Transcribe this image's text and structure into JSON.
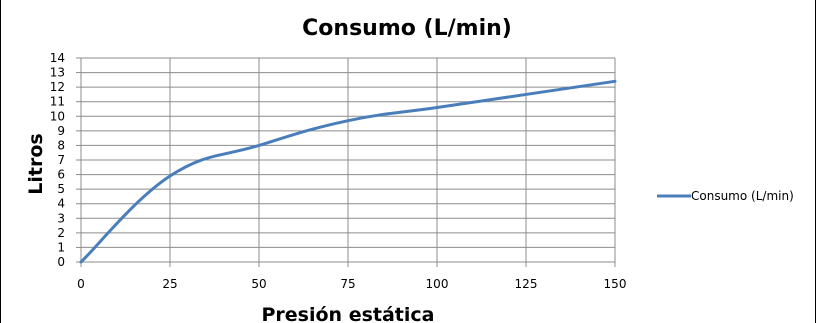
{
  "chart_data": {
    "type": "line",
    "title": "Consumo (L/min)",
    "xlabel": "Presión estática",
    "ylabel": "Litros",
    "x": [
      0,
      25,
      50,
      75,
      100,
      125,
      150
    ],
    "xticks": [
      "0",
      "25",
      "50",
      "75",
      "100",
      "125",
      "150"
    ],
    "xlim": [
      0,
      150
    ],
    "yticks": [
      "0",
      "1",
      "2",
      "3",
      "4",
      "5",
      "6",
      "7",
      "8",
      "9",
      "10",
      "11",
      "12",
      "13",
      "14"
    ],
    "ylim": [
      0,
      14
    ],
    "grid": true,
    "legend_position": "right",
    "series": [
      {
        "name": "Consumo (L/min)",
        "color": "#4a7ebb",
        "values": [
          0,
          5.9,
          8.0,
          9.7,
          10.6,
          11.5,
          12.4
        ]
      }
    ]
  }
}
